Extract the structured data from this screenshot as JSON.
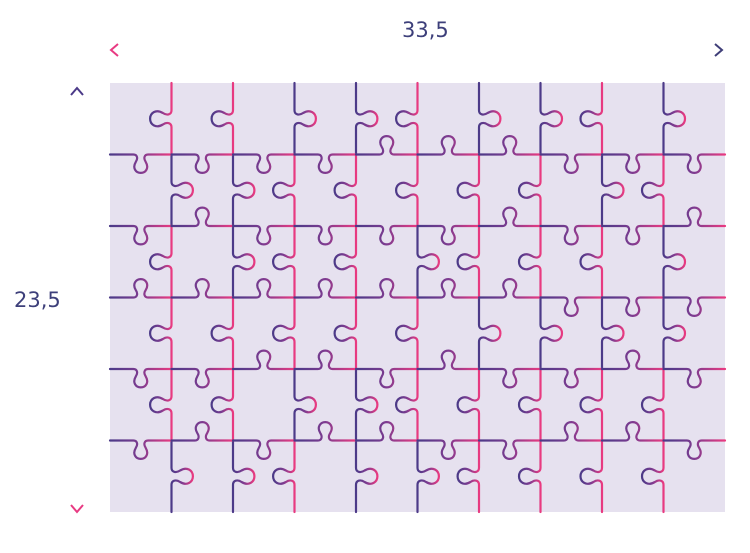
{
  "dimensions": {
    "width_label": "33,5",
    "height_label": "23,5"
  },
  "puzzle": {
    "columns": 10,
    "rows": 6
  },
  "colors": {
    "background": "#e6e1ef",
    "gradient_start": "#4b3a88",
    "gradient_end": "#ea3a80",
    "label": "#3d3f7a"
  }
}
